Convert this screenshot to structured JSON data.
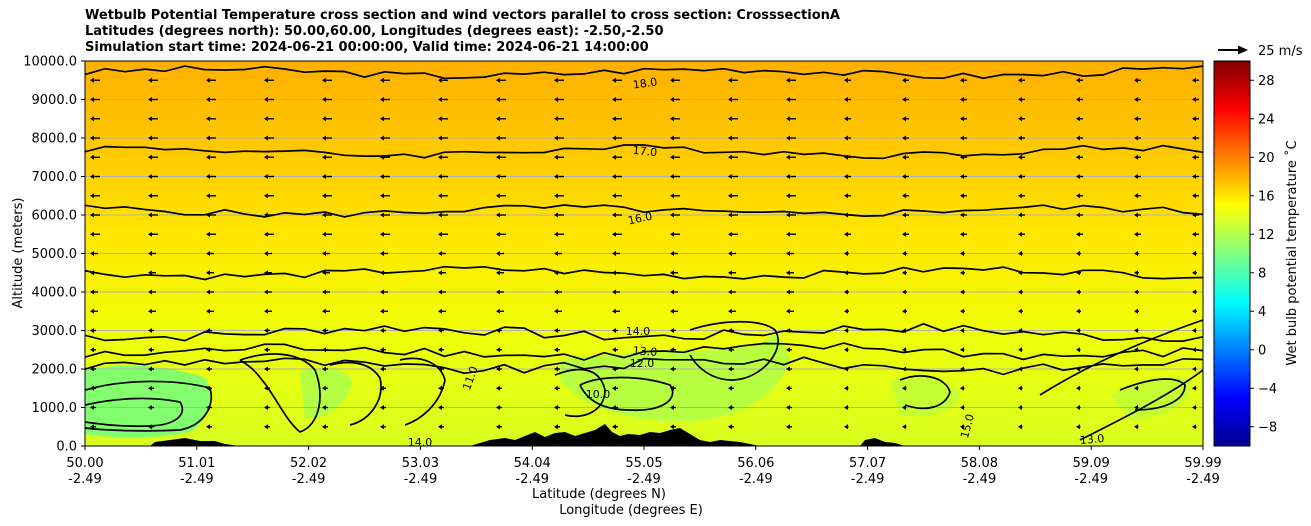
{
  "chart_data": {
    "type": "contour",
    "title_lines": [
      "Wetbulb Potential Temperature cross section and wind vectors parallel to cross section: CrosssectionA",
      "Latitudes (degrees north): 50.00,60.00, Longitudes (degrees east): -2.50,-2.50",
      "Simulation start time: 2024-06-21 00:00:00, Valid time: 2024-06-21 14:00:00"
    ],
    "ylabel": "Altitude (meters)",
    "xlabel": "Latitude (degrees N)",
    "xlabel2": "Longitude (degrees E)",
    "ylim": [
      0,
      10000
    ],
    "y_ticks": [
      "0.0",
      "1000.0",
      "2000.0",
      "3000.0",
      "4000.0",
      "5000.0",
      "6000.0",
      "7000.0",
      "8000.0",
      "9000.0",
      "10000.0"
    ],
    "x_ticks": [
      {
        "lat": "50.00",
        "lon": "-2.49"
      },
      {
        "lat": "51.01",
        "lon": "-2.49"
      },
      {
        "lat": "52.02",
        "lon": "-2.49"
      },
      {
        "lat": "53.03",
        "lon": "-2.49"
      },
      {
        "lat": "54.04",
        "lon": "-2.49"
      },
      {
        "lat": "55.05",
        "lon": "-2.49"
      },
      {
        "lat": "56.06",
        "lon": "-2.49"
      },
      {
        "lat": "57.07",
        "lon": "-2.49"
      },
      {
        "lat": "58.08",
        "lon": "-2.49"
      },
      {
        "lat": "59.09",
        "lon": "-2.49"
      },
      {
        "lat": "59.99",
        "lon": "-2.49"
      }
    ],
    "grid": "horizontal",
    "contours": [
      {
        "level": 18.0,
        "altitude_m": 9700
      },
      {
        "level": 17.0,
        "altitude_m": 7650
      },
      {
        "level": 16.0,
        "altitude_m": 6100
      },
      {
        "level": 16.0,
        "altitude_m": 4500
      },
      {
        "level": 14.0,
        "altitude_m": 2950
      },
      {
        "level": 13.0,
        "altitude_m": 2450
      },
      {
        "level": 12.0,
        "altitude_m": 2100
      }
    ],
    "contour_labels": [
      "18.0",
      "17.0",
      "16.0",
      "14.0",
      "13.0",
      "12.0",
      "11.0",
      "10.0",
      "14.0",
      "13.0",
      "15.0"
    ],
    "colorbar": {
      "label": "Wet bulb potential temperature ˚C",
      "min": -10,
      "max": 30,
      "ticks": [
        "28",
        "24",
        "20",
        "16",
        "12",
        "8",
        "4",
        "0",
        "−4",
        "−8"
      ],
      "tick_values": [
        28,
        24,
        20,
        16,
        12,
        8,
        4,
        0,
        -4,
        -8
      ]
    },
    "wind_key_label": "25 m/s",
    "colors": {
      "bg_upper": "#ffb000",
      "bg_mid": "#ffe000",
      "bg_lower": "#e4ff10",
      "bg_low_green": "#80ff70",
      "terrain": "#000000"
    }
  }
}
